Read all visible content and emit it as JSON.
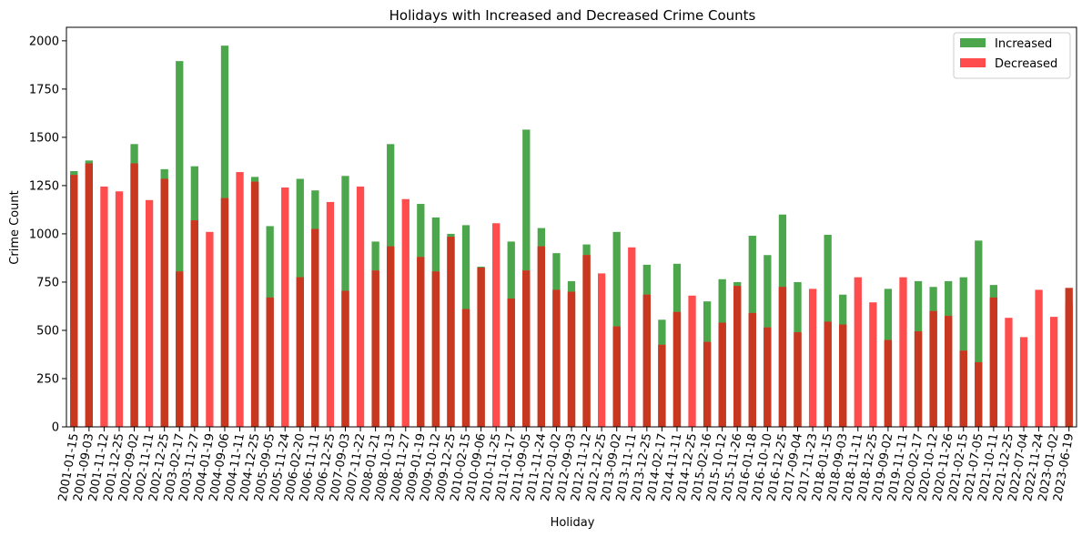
{
  "chart_data": {
    "type": "bar",
    "title": "Holidays with Increased and Decreased Crime Counts",
    "xlabel": "Holiday",
    "ylabel": "Crime Count",
    "ylim": [
      0,
      2070
    ],
    "yticks": [
      0,
      250,
      500,
      750,
      1000,
      1250,
      1500,
      1750,
      2000
    ],
    "grid": false,
    "legend_position": "top-right",
    "colors": {
      "Increased": "#4ca64c",
      "Decreased": "#ff4c4c",
      "overlap": "#c83820"
    },
    "categories": [
      "2001-01-15",
      "2001-09-03",
      "2001-11-12",
      "2001-12-25",
      "2002-09-02",
      "2002-11-11",
      "2002-12-25",
      "2003-02-17",
      "2003-11-27",
      "2004-01-19",
      "2004-09-06",
      "2004-11-11",
      "2004-12-25",
      "2005-09-05",
      "2005-11-24",
      "2006-02-20",
      "2006-11-11",
      "2006-12-25",
      "2007-09-03",
      "2007-11-22",
      "2008-01-21",
      "2008-10-13",
      "2008-11-27",
      "2009-01-19",
      "2009-10-12",
      "2009-12-25",
      "2010-02-15",
      "2010-09-06",
      "2010-11-25",
      "2011-01-17",
      "2011-09-05",
      "2011-11-24",
      "2012-01-02",
      "2012-09-03",
      "2012-11-12",
      "2012-12-25",
      "2013-09-02",
      "2013-11-11",
      "2013-12-25",
      "2014-02-17",
      "2014-11-11",
      "2014-12-25",
      "2015-02-16",
      "2015-10-12",
      "2015-11-26",
      "2016-01-18",
      "2016-10-10",
      "2016-12-25",
      "2017-09-04",
      "2017-11-23",
      "2018-01-15",
      "2018-09-03",
      "2018-11-11",
      "2018-12-25",
      "2019-09-02",
      "2019-11-11",
      "2020-02-17",
      "2020-10-12",
      "2020-11-26",
      "2021-02-15",
      "2021-07-05",
      "2021-10-11",
      "2021-12-25",
      "2022-07-04",
      "2022-11-24",
      "2023-01-02",
      "2023-06-19"
    ],
    "series": [
      {
        "name": "Increased",
        "values": [
          1325,
          1380,
          0,
          0,
          1465,
          0,
          1335,
          1895,
          1350,
          0,
          1975,
          0,
          1295,
          1040,
          0,
          1285,
          1225,
          0,
          1300,
          0,
          960,
          1465,
          0,
          1155,
          1085,
          1000,
          1045,
          830,
          0,
          960,
          1540,
          1030,
          900,
          755,
          945,
          0,
          1010,
          0,
          840,
          555,
          845,
          0,
          650,
          765,
          750,
          990,
          890,
          1100,
          750,
          0,
          995,
          685,
          0,
          0,
          715,
          0,
          755,
          725,
          755,
          775,
          965,
          735,
          0,
          0,
          0,
          0,
          0
        ]
      },
      {
        "name": "Decreased",
        "values": [
          1305,
          1365,
          1245,
          1220,
          1365,
          1175,
          1285,
          805,
          1070,
          1010,
          1185,
          1320,
          1270,
          670,
          1240,
          775,
          1025,
          1165,
          705,
          1245,
          810,
          935,
          1180,
          880,
          805,
          985,
          610,
          825,
          1055,
          665,
          810,
          935,
          710,
          700,
          890,
          795,
          520,
          930,
          685,
          425,
          595,
          680,
          440,
          540,
          730,
          590,
          515,
          725,
          490,
          715,
          545,
          530,
          775,
          645,
          450,
          775,
          495,
          600,
          575,
          395,
          335,
          670,
          565,
          465,
          710,
          570,
          645
        ]
      },
      {
        "name": "",
        "values": [
          0,
          0,
          0,
          0,
          0,
          0,
          0,
          0,
          0,
          0,
          0,
          0,
          0,
          0,
          0,
          0,
          0,
          0,
          0,
          0,
          0,
          0,
          0,
          0,
          0,
          0,
          0,
          0,
          0,
          0,
          0,
          0,
          0,
          0,
          0,
          0,
          0,
          0,
          0,
          0,
          0,
          0,
          0,
          0,
          0,
          0,
          0,
          0,
          0,
          0,
          0,
          0,
          0,
          0,
          0,
          0,
          0,
          0,
          0,
          0,
          0,
          0,
          0,
          0,
          0,
          0,
          720
        ]
      }
    ]
  }
}
